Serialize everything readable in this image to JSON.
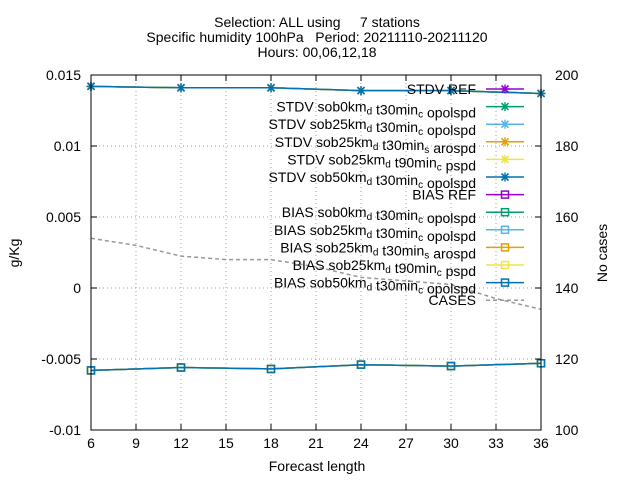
{
  "chart_data": {
    "type": "line",
    "title_lines": [
      "Selection: ALL using     7 stations",
      "Specific humidity 100hPa   Period: 20211110-20211120",
      "Hours: 00,06,12,18"
    ],
    "xlabel": "Forecast length",
    "ylabel": "g/Kg",
    "y2label": "No cases",
    "xlim": [
      6,
      36
    ],
    "ylim": [
      -0.01,
      0.015
    ],
    "y2lim": [
      100,
      200
    ],
    "xticks": [
      "6",
      "9",
      "12",
      "15",
      "18",
      "21",
      "24",
      "27",
      "30",
      "33",
      "36"
    ],
    "yticks": [
      "-0.01",
      "-0.005",
      "0",
      "0.005",
      "0.01",
      "0.015"
    ],
    "y2ticks": [
      "100",
      "120",
      "140",
      "160",
      "180",
      "200"
    ],
    "grid": true,
    "legend_position": "top-right",
    "x": [
      6,
      12,
      18,
      24,
      30,
      36
    ],
    "series": [
      {
        "name": "STDV REF",
        "kind": "stdv",
        "color": "#9400d3",
        "values": [
          0.0142,
          0.0141,
          0.0141,
          0.0139,
          0.0139,
          0.0137
        ]
      },
      {
        "name": "STDV sob0km_d t30min_c opolspd",
        "kind": "stdv",
        "color": "#009e73",
        "values": [
          0.0142,
          0.0141,
          0.0141,
          0.0139,
          0.0139,
          0.0137
        ]
      },
      {
        "name": "STDV sob25km_d t30min_c opolspd",
        "kind": "stdv",
        "color": "#56b4e9",
        "values": [
          0.0142,
          0.0141,
          0.0141,
          0.0139,
          0.0139,
          0.0137
        ]
      },
      {
        "name": "STDV sob25km_d t30min_s arospd",
        "kind": "stdv",
        "color": "#e69f00",
        "values": [
          0.0142,
          0.0141,
          0.0141,
          0.0139,
          0.0139,
          0.0137
        ]
      },
      {
        "name": "STDV sob25km_d t90min_c pspd",
        "kind": "stdv",
        "color": "#f0e442",
        "values": [
          0.0142,
          0.0141,
          0.0141,
          0.0139,
          0.0139,
          0.0137
        ]
      },
      {
        "name": "STDV sob50km_d t30min_c opolspd",
        "kind": "stdv",
        "color": "#0072b2",
        "values": [
          0.0142,
          0.0141,
          0.0141,
          0.0139,
          0.0139,
          0.0137
        ]
      },
      {
        "name": "BIAS REF",
        "kind": "bias",
        "color": "#9400d3",
        "values": [
          -0.0058,
          -0.0056,
          -0.0057,
          -0.0054,
          -0.0055,
          -0.0053
        ]
      },
      {
        "name": "BIAS sob0km_d t30min_c opolspd",
        "kind": "bias",
        "color": "#009e73",
        "values": [
          -0.0058,
          -0.0056,
          -0.0057,
          -0.0054,
          -0.0055,
          -0.0053
        ]
      },
      {
        "name": "BIAS sob25km_d t30min_c opolspd",
        "kind": "bias",
        "color": "#56b4e9",
        "values": [
          -0.0058,
          -0.0056,
          -0.0057,
          -0.0054,
          -0.0055,
          -0.0053
        ]
      },
      {
        "name": "BIAS sob25km_d t30min_s arospd",
        "kind": "bias",
        "color": "#e69f00",
        "values": [
          -0.0058,
          -0.0056,
          -0.0057,
          -0.0054,
          -0.0055,
          -0.0053
        ]
      },
      {
        "name": "BIAS sob25km_d t90min_c pspd",
        "kind": "bias",
        "color": "#f0e442",
        "values": [
          -0.0058,
          -0.0056,
          -0.0057,
          -0.0054,
          -0.0055,
          -0.0053
        ]
      },
      {
        "name": "BIAS sob50km_d t30min_c opolspd",
        "kind": "bias",
        "color": "#0072b2",
        "values": [
          -0.0058,
          -0.0056,
          -0.0057,
          -0.0054,
          -0.0055,
          -0.0053
        ]
      }
    ],
    "cases": {
      "name": "CASES",
      "color": "#999999",
      "axis": "y2",
      "x": [
        6,
        9,
        12,
        15,
        18,
        21,
        24,
        27,
        30,
        33,
        36
      ],
      "values": [
        154,
        152,
        149,
        148,
        148,
        146,
        143,
        142,
        141,
        137,
        134
      ]
    }
  }
}
